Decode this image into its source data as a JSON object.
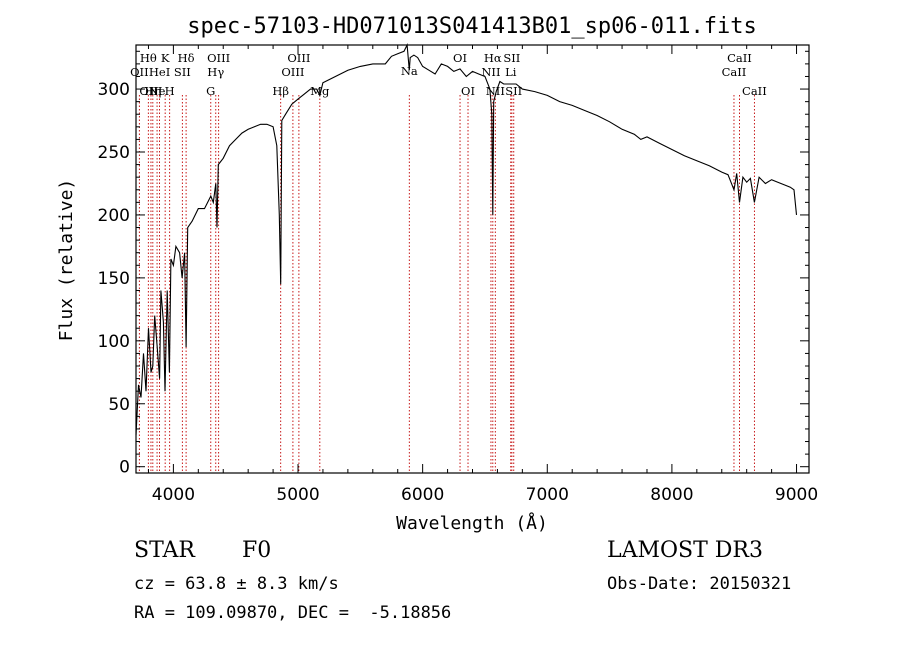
{
  "chart_data": {
    "type": "line",
    "title": "spec-57103-HD071013S041413B01_sp06-011.fits",
    "xlabel": "Wavelength (Å)",
    "ylabel": "Flux (relative)",
    "xlim": [
      3700,
      9100
    ],
    "ylim": [
      -5,
      335
    ],
    "x_ticks": [
      4000,
      5000,
      6000,
      7000,
      8000,
      9000
    ],
    "y_ticks": [
      0,
      50,
      100,
      150,
      200,
      250,
      300
    ],
    "series": [
      {
        "x": [
          3700,
          3720,
          3740,
          3760,
          3780,
          3800,
          3820,
          3835,
          3850,
          3870,
          3889,
          3900,
          3920,
          3933,
          3950,
          3968,
          3980,
          4000,
          4020,
          4050,
          4070,
          4090,
          4102,
          4115,
          4150,
          4200,
          4250,
          4300,
          4320,
          4340,
          4350,
          4360,
          4400,
          4450,
          4500,
          4550,
          4600,
          4650,
          4700,
          4750,
          4800,
          4830,
          4850,
          4861,
          4870,
          4900,
          4950,
          5000,
          5050,
          5100,
          5150,
          5175,
          5200,
          5300,
          5400,
          5500,
          5600,
          5700,
          5750,
          5800,
          5850,
          5875,
          5893,
          5900,
          5930,
          5960,
          6000,
          6050,
          6100,
          6150,
          6200,
          6250,
          6300,
          6350,
          6400,
          6450,
          6500,
          6540,
          6555,
          6563,
          6570,
          6590,
          6620,
          6650,
          6700,
          6750,
          6800,
          6900,
          7000,
          7100,
          7200,
          7300,
          7400,
          7500,
          7600,
          7700,
          7750,
          7800,
          7900,
          8000,
          8100,
          8200,
          8300,
          8400,
          8450,
          8498,
          8520,
          8542,
          8570,
          8600,
          8630,
          8662,
          8700,
          8750,
          8800,
          8850,
          8900,
          8950,
          8980,
          9000
        ],
        "y": [
          25,
          65,
          55,
          90,
          60,
          110,
          75,
          80,
          120,
          95,
          70,
          140,
          115,
          60,
          140,
          75,
          165,
          160,
          175,
          170,
          150,
          170,
          95,
          190,
          195,
          205,
          205,
          215,
          210,
          225,
          190,
          240,
          245,
          255,
          260,
          265,
          268,
          270,
          272,
          272,
          270,
          255,
          200,
          145,
          275,
          280,
          288,
          292,
          296,
          300,
          300,
          295,
          305,
          310,
          315,
          318,
          320,
          320,
          326,
          328,
          330,
          335,
          315,
          325,
          327,
          325,
          318,
          315,
          312,
          320,
          318,
          314,
          316,
          310,
          314,
          312,
          310,
          300,
          280,
          200,
          290,
          298,
          306,
          304,
          304,
          304,
          300,
          298,
          295,
          290,
          287,
          283,
          279,
          274,
          268,
          264,
          260,
          262,
          257,
          252,
          247,
          243,
          239,
          234,
          232,
          220,
          233,
          210,
          230,
          226,
          229,
          210,
          230,
          225,
          228,
          226,
          224,
          222,
          220,
          200
        ]
      }
    ],
    "line_markers": [
      {
        "x": 3727,
        "label": "OII",
        "row": 2
      },
      {
        "x": 3799,
        "label": "Hθ",
        "row": 1
      },
      {
        "x": 3820,
        "label": "OIII",
        "row": 3
      },
      {
        "x": 3835,
        "label": "Hη",
        "row": 3
      },
      {
        "x": 3869,
        "label": "Ne",
        "row": 3
      },
      {
        "x": 3889,
        "label": "HeI",
        "row": 2
      },
      {
        "x": 3934,
        "label": "K",
        "row": 1
      },
      {
        "x": 3970,
        "label": "H",
        "row": 3
      },
      {
        "x": 4072,
        "label": "SII",
        "row": 2
      },
      {
        "x": 4102,
        "label": "Hδ",
        "row": 1
      },
      {
        "x": 4300,
        "label": "G",
        "row": 3
      },
      {
        "x": 4340,
        "label": "Hγ",
        "row": 2
      },
      {
        "x": 4363,
        "label": "OIII",
        "row": 1
      },
      {
        "x": 4861,
        "label": "Hβ",
        "row": 3
      },
      {
        "x": 4959,
        "label": "OIII",
        "row": 2
      },
      {
        "x": 5007,
        "label": "OIII",
        "row": 1
      },
      {
        "x": 5175,
        "label": "Mg",
        "row": 3
      },
      {
        "x": 5893,
        "label": "Na",
        "row": 4
      },
      {
        "x": 6300,
        "label": "OI",
        "row": 1
      },
      {
        "x": 6364,
        "label": "OI",
        "row": 3
      },
      {
        "x": 6548,
        "label": "NII",
        "row": 2
      },
      {
        "x": 6563,
        "label": "Hα",
        "row": 1
      },
      {
        "x": 6583,
        "label": "NII",
        "row": 3
      },
      {
        "x": 6707,
        "label": "Li",
        "row": 2
      },
      {
        "x": 6716,
        "label": "SII",
        "row": 1
      },
      {
        "x": 6731,
        "label": "SII",
        "row": 3
      },
      {
        "x": 8498,
        "label": "CaII",
        "row": 2
      },
      {
        "x": 8542,
        "label": "CaII",
        "row": 1
      },
      {
        "x": 8662,
        "label": "CaII",
        "row": 3
      }
    ],
    "grid": false,
    "legend": "none"
  },
  "info": {
    "object_class": "STAR",
    "subclass": "F0",
    "survey": "LAMOST DR3",
    "redshift": "cz = 63.8 ± 8.3 km/s",
    "obs_date": "Obs-Date: 20150321",
    "coords": "RA = 109.09870, DEC =  -5.18856"
  }
}
